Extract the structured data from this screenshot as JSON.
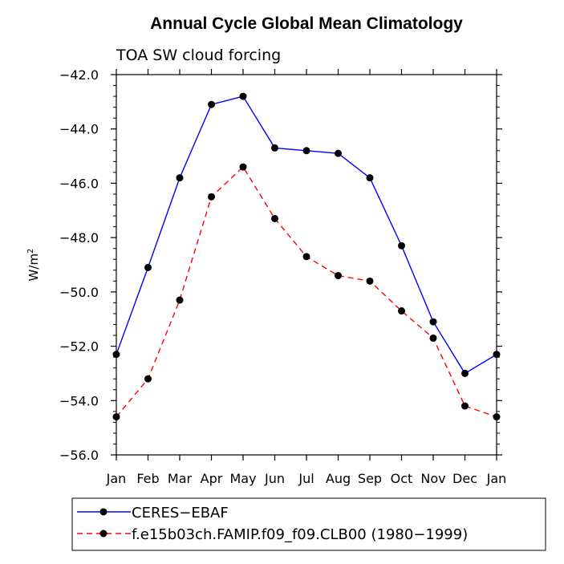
{
  "chart_data": {
    "type": "line",
    "title": "Annual Cycle Global Mean Climatology",
    "subtitle": "TOA SW cloud forcing",
    "ylabel": "W/m",
    "ylabel_sup": "2",
    "xlabel": "",
    "categories": [
      "Jan",
      "Feb",
      "Mar",
      "Apr",
      "May",
      "Jun",
      "Jul",
      "Aug",
      "Sep",
      "Oct",
      "Nov",
      "Dec",
      "Jan"
    ],
    "ylim": [
      -56.0,
      -42.0
    ],
    "yticks": [
      -42.0,
      -44.0,
      -46.0,
      -48.0,
      -50.0,
      -52.0,
      -54.0,
      -56.0
    ],
    "ytick_labels": [
      "−42.0",
      "−44.0",
      "−46.0",
      "−48.0",
      "−50.0",
      "−52.0",
      "−54.0",
      "−56.0"
    ],
    "grid": false,
    "legend_position": "bottom-left",
    "series": [
      {
        "name": "CERES−EBAF",
        "color": "#0000ff",
        "style": "solid",
        "marker": "circle",
        "values": [
          -52.3,
          -49.1,
          -45.8,
          -43.1,
          -42.8,
          -44.7,
          -44.8,
          -44.9,
          -45.8,
          -48.3,
          -51.1,
          -53.0,
          -52.3
        ]
      },
      {
        "name": "f.e15b03ch.FAMIP.f09_f09.CLB00 (1980−1999)",
        "color": "#ff0000",
        "style": "dashed",
        "marker": "circle",
        "values": [
          -54.6,
          -53.2,
          -50.3,
          -46.5,
          -45.4,
          -47.3,
          -48.7,
          -49.4,
          -49.6,
          -50.7,
          -51.7,
          -54.2,
          -54.6
        ]
      }
    ]
  }
}
